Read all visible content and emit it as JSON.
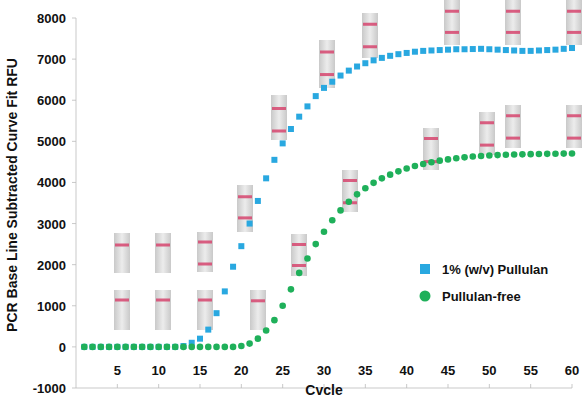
{
  "chart_data": {
    "type": "scatter",
    "x_label": "Cvcle",
    "y_label": "PCR Base Line Subtracted Curve Fit RFU",
    "x": [
      1,
      2,
      3,
      4,
      5,
      6,
      7,
      8,
      9,
      10,
      11,
      12,
      13,
      14,
      15,
      16,
      17,
      18,
      19,
      20,
      21,
      22,
      23,
      24,
      25,
      26,
      27,
      28,
      29,
      30,
      31,
      32,
      33,
      34,
      35,
      36,
      37,
      38,
      39,
      40,
      41,
      42,
      43,
      44,
      45,
      46,
      47,
      48,
      49,
      50,
      51,
      52,
      53,
      54,
      55,
      56,
      57,
      58,
      59,
      60
    ],
    "xlim": [
      0,
      60
    ],
    "xticks": [
      5,
      10,
      15,
      20,
      25,
      30,
      35,
      40,
      45,
      50,
      55,
      60
    ],
    "ylim": [
      -1000,
      8000
    ],
    "yticks": [
      -1000,
      0,
      1000,
      2000,
      3000,
      4000,
      5000,
      6000,
      7000,
      8000
    ],
    "grid": false,
    "legend": "right",
    "series": [
      {
        "name": "1% (w/v) Pullulan",
        "color": "#29a8e0",
        "marker": "square",
        "values": [
          0,
          0,
          0,
          0,
          0,
          0,
          0,
          0,
          0,
          0,
          0,
          0,
          20,
          100,
          200,
          420,
          820,
          1350,
          1950,
          2450,
          3000,
          3550,
          4100,
          4550,
          4950,
          5300,
          5600,
          5850,
          6100,
          6300,
          6450,
          6600,
          6720,
          6820,
          6900,
          6970,
          7030,
          7080,
          7120,
          7150,
          7180,
          7200,
          7210,
          7220,
          7230,
          7240,
          7240,
          7245,
          7250,
          7240,
          7230,
          7220,
          7210,
          7200,
          7200,
          7210,
          7220,
          7230,
          7250,
          7270
        ]
      },
      {
        "name": "Pullulan-free",
        "color": "#1fb05a",
        "marker": "circle",
        "values": [
          0,
          0,
          0,
          0,
          0,
          0,
          0,
          0,
          0,
          0,
          0,
          0,
          0,
          0,
          0,
          0,
          0,
          0,
          0,
          20,
          80,
          200,
          400,
          650,
          1000,
          1400,
          1800,
          2150,
          2500,
          2800,
          3080,
          3320,
          3530,
          3710,
          3860,
          3990,
          4100,
          4190,
          4270,
          4340,
          4400,
          4450,
          4490,
          4530,
          4560,
          4590,
          4610,
          4630,
          4645,
          4655,
          4665,
          4672,
          4678,
          4683,
          4688,
          4692,
          4696,
          4699,
          4702,
          4705
        ]
      }
    ]
  }
}
